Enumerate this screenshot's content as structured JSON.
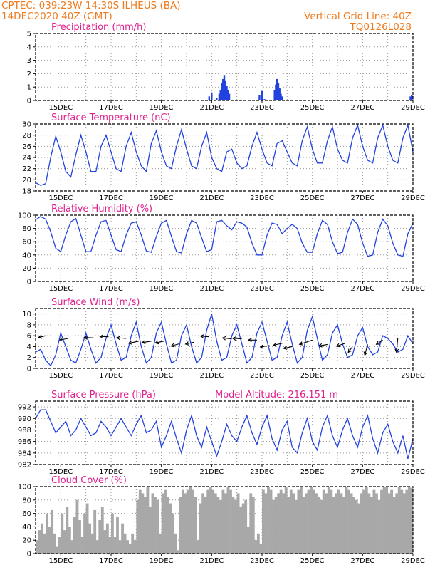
{
  "header": {
    "line1": "CPTEC:   039:23W-14:30S  ILHEUS (BA)",
    "line2": "14DEC2020 40Z (GMT)",
    "right1": "Vertical Grid Line: 40Z",
    "right2": "TQ0126L028"
  },
  "chart_data": [
    {
      "type": "bar",
      "title": "Precipitation (mm/h)",
      "ylim": [
        0,
        5
      ],
      "yticks": [
        "0",
        "1",
        "2",
        "3",
        "4",
        "5"
      ],
      "xticks": [
        "15DEC",
        "17DEC",
        "19DEC",
        "21DEC",
        "23DEC",
        "25DEC",
        "27DEC",
        "29DEC"
      ],
      "xlim": [
        14.0,
        29.0
      ],
      "color": "#2242e0",
      "points": [
        [
          20.9,
          0.3
        ],
        [
          21.0,
          0.6
        ],
        [
          21.2,
          0.2
        ],
        [
          21.3,
          0.5
        ],
        [
          21.35,
          0.8
        ],
        [
          21.4,
          1.3
        ],
        [
          21.45,
          1.6
        ],
        [
          21.5,
          1.9
        ],
        [
          21.55,
          1.5
        ],
        [
          21.6,
          1.1
        ],
        [
          21.65,
          0.8
        ],
        [
          21.7,
          0.5
        ],
        [
          22.9,
          0.4
        ],
        [
          23.0,
          0.7
        ],
        [
          23.1,
          0.1
        ],
        [
          23.5,
          0.8
        ],
        [
          23.55,
          1.2
        ],
        [
          23.6,
          1.6
        ],
        [
          23.65,
          1.3
        ],
        [
          23.7,
          0.9
        ],
        [
          23.75,
          0.5
        ],
        [
          23.8,
          0.3
        ],
        [
          28.9,
          0.3
        ],
        [
          28.95,
          0.4
        ]
      ]
    },
    {
      "type": "line",
      "title": "Surface Temperature (nC)",
      "ylim": [
        18,
        30
      ],
      "yticks": [
        "18",
        "20",
        "22",
        "24",
        "26",
        "28",
        "30"
      ],
      "xticks": [
        "15DEC",
        "17DEC",
        "19DEC",
        "21DEC",
        "23DEC",
        "25DEC",
        "27DEC",
        "29DEC"
      ],
      "xlim": [
        14.0,
        29.0
      ],
      "color": "#2242e0",
      "x": [
        14.0,
        14.2,
        14.4,
        14.6,
        14.8,
        15.0,
        15.2,
        15.4,
        15.6,
        15.8,
        16.0,
        16.2,
        16.4,
        16.6,
        16.8,
        17.0,
        17.2,
        17.4,
        17.6,
        17.8,
        18.0,
        18.2,
        18.4,
        18.6,
        18.8,
        19.0,
        19.2,
        19.4,
        19.6,
        19.8,
        20.0,
        20.2,
        20.4,
        20.6,
        20.8,
        21.0,
        21.2,
        21.4,
        21.6,
        21.8,
        22.0,
        22.2,
        22.4,
        22.6,
        22.8,
        23.0,
        23.2,
        23.4,
        23.6,
        23.8,
        24.0,
        24.2,
        24.4,
        24.6,
        24.8,
        25.0,
        25.2,
        25.4,
        25.6,
        25.8,
        26.0,
        26.2,
        26.4,
        26.6,
        26.8,
        27.0,
        27.2,
        27.4,
        27.6,
        27.8,
        28.0,
        28.2,
        28.4,
        28.6,
        28.8,
        29.0
      ],
      "y": [
        19.5,
        19.0,
        19.3,
        24.0,
        27.8,
        25.0,
        21.5,
        20.5,
        24.5,
        28.0,
        25.0,
        21.5,
        21.5,
        26.0,
        28.0,
        25.0,
        22.0,
        21.5,
        26.0,
        28.5,
        25.0,
        22.5,
        21.5,
        26.5,
        28.8,
        25.0,
        22.5,
        22.0,
        26.0,
        29.0,
        25.5,
        22.5,
        22.0,
        26.0,
        28.5,
        24.0,
        22.0,
        21.5,
        25.0,
        25.5,
        23.0,
        22.0,
        22.5,
        26.0,
        28.5,
        25.5,
        23.0,
        22.5,
        26.5,
        27.0,
        25.0,
        23.0,
        22.5,
        27.0,
        29.5,
        25.5,
        23.0,
        23.0,
        27.0,
        29.5,
        25.5,
        23.5,
        23.0,
        27.5,
        29.8,
        26.0,
        23.5,
        23.0,
        27.5,
        29.8,
        26.0,
        23.5,
        23.0,
        27.5,
        29.8,
        25.0
      ]
    },
    {
      "type": "line",
      "title": "Relative Humidity (%)",
      "ylim": [
        0,
        100
      ],
      "yticks": [
        "0",
        "20",
        "40",
        "60",
        "80",
        "100"
      ],
      "xticks": [
        "15DEC",
        "17DEC",
        "19DEC",
        "21DEC",
        "23DEC",
        "25DEC",
        "27DEC",
        "29DEC"
      ],
      "xlim": [
        14.0,
        29.0
      ],
      "color": "#2242e0",
      "x": [
        14.0,
        14.2,
        14.4,
        14.6,
        14.8,
        15.0,
        15.2,
        15.4,
        15.6,
        15.8,
        16.0,
        16.2,
        16.4,
        16.6,
        16.8,
        17.0,
        17.2,
        17.4,
        17.6,
        17.8,
        18.0,
        18.2,
        18.4,
        18.6,
        18.8,
        19.0,
        19.2,
        19.4,
        19.6,
        19.8,
        20.0,
        20.2,
        20.4,
        20.6,
        20.8,
        21.0,
        21.2,
        21.4,
        21.6,
        21.8,
        22.0,
        22.2,
        22.4,
        22.6,
        22.8,
        23.0,
        23.2,
        23.4,
        23.6,
        23.8,
        24.0,
        24.2,
        24.4,
        24.6,
        24.8,
        25.0,
        25.2,
        25.4,
        25.6,
        25.8,
        26.0,
        26.2,
        26.4,
        26.6,
        26.8,
        27.0,
        27.2,
        27.4,
        27.6,
        27.8,
        28.0,
        28.2,
        28.4,
        28.6,
        28.8,
        29.0
      ],
      "y": [
        93,
        98,
        94,
        75,
        50,
        45,
        70,
        90,
        95,
        70,
        45,
        45,
        70,
        90,
        92,
        70,
        48,
        45,
        70,
        88,
        90,
        70,
        46,
        44,
        68,
        88,
        92,
        68,
        45,
        43,
        72,
        92,
        88,
        66,
        45,
        48,
        90,
        92,
        84,
        78,
        90,
        88,
        82,
        58,
        40,
        40,
        70,
        88,
        86,
        72,
        80,
        86,
        80,
        58,
        44,
        44,
        72,
        92,
        86,
        60,
        42,
        44,
        74,
        94,
        86,
        58,
        38,
        40,
        74,
        94,
        84,
        58,
        40,
        38,
        72,
        88
      ]
    },
    {
      "type": "line",
      "title": "Surface Wind (m/s)",
      "ylim": [
        0,
        11
      ],
      "yticks": [
        "0",
        "2",
        "4",
        "6",
        "8",
        "10"
      ],
      "xticks": [
        "15DEC",
        "17DEC",
        "19DEC",
        "21DEC",
        "23DEC",
        "25DEC",
        "27DEC",
        "29DEC"
      ],
      "xlim": [
        14.0,
        29.0
      ],
      "color": "#2242e0",
      "x": [
        14.0,
        14.2,
        14.4,
        14.6,
        14.8,
        15.0,
        15.2,
        15.4,
        15.6,
        15.8,
        16.0,
        16.2,
        16.4,
        16.6,
        16.8,
        17.0,
        17.2,
        17.4,
        17.6,
        17.8,
        18.0,
        18.2,
        18.4,
        18.6,
        18.8,
        19.0,
        19.2,
        19.4,
        19.6,
        19.8,
        20.0,
        20.2,
        20.4,
        20.6,
        20.8,
        21.0,
        21.2,
        21.4,
        21.6,
        21.8,
        22.0,
        22.2,
        22.4,
        22.6,
        22.8,
        23.0,
        23.2,
        23.4,
        23.6,
        23.8,
        24.0,
        24.2,
        24.4,
        24.6,
        24.8,
        25.0,
        25.2,
        25.4,
        25.6,
        25.8,
        26.0,
        26.2,
        26.4,
        26.6,
        26.8,
        27.0,
        27.2,
        27.4,
        27.6,
        27.8,
        28.0,
        28.2,
        28.4,
        28.6,
        28.8,
        29.0
      ],
      "y": [
        3.0,
        3.5,
        1.5,
        0.5,
        2.5,
        6.5,
        4.0,
        1.5,
        1.0,
        3.5,
        6.5,
        3.5,
        1.0,
        2.0,
        5.5,
        8.0,
        4.5,
        1.5,
        2.0,
        6.0,
        8.5,
        4.0,
        1.0,
        2.0,
        6.5,
        8.5,
        4.5,
        1.0,
        1.5,
        6.0,
        8.0,
        4.0,
        1.0,
        2.0,
        7.0,
        10.0,
        5.0,
        1.5,
        2.0,
        6.0,
        8.0,
        4.5,
        1.0,
        2.0,
        6.5,
        8.5,
        5.0,
        1.5,
        2.0,
        6.0,
        8.5,
        4.5,
        1.0,
        2.0,
        7.0,
        9.5,
        5.5,
        1.5,
        2.5,
        6.5,
        8.0,
        4.5,
        2.0,
        2.5,
        6.0,
        7.5,
        4.0,
        2.5,
        3.0,
        6.0,
        5.5,
        4.5,
        3.0,
        3.5,
        6.0,
        4.5
      ],
      "arrows": [
        [
          14.4,
          6.0,
          -1.0,
          -0.25
        ],
        [
          15.3,
          5.5,
          -1.2,
          -0.2
        ],
        [
          16.3,
          5.6,
          -1.3,
          0.05
        ],
        [
          16.9,
          5.8,
          -1.2,
          0.05
        ],
        [
          17.6,
          5.5,
          -1.3,
          0.1
        ],
        [
          18.1,
          5.0,
          -1.4,
          -0.3
        ],
        [
          18.6,
          5.0,
          -1.3,
          -0.2
        ],
        [
          19.1,
          5.0,
          -1.2,
          -0.25
        ],
        [
          19.7,
          4.5,
          -1.1,
          -0.3
        ],
        [
          20.3,
          4.8,
          -1.2,
          -0.25
        ],
        [
          20.9,
          5.8,
          -1.2,
          0.1
        ],
        [
          21.8,
          5.4,
          -1.3,
          0.15
        ],
        [
          22.2,
          5.4,
          -1.3,
          0.1
        ],
        [
          22.8,
          5.2,
          -1.2,
          0.0
        ],
        [
          23.3,
          4.2,
          -1.3,
          -0.2
        ],
        [
          23.8,
          4.6,
          -1.2,
          -0.25
        ],
        [
          24.2,
          4.0,
          -1.2,
          -0.25
        ],
        [
          25.0,
          5.2,
          -1.8,
          -0.6
        ],
        [
          25.6,
          4.4,
          -1.2,
          -0.2
        ],
        [
          26.3,
          4.6,
          -1.2,
          -0.4
        ],
        [
          26.6,
          4.0,
          -0.6,
          -0.8
        ],
        [
          27.2,
          4.4,
          -0.4,
          -1.5
        ],
        [
          27.8,
          5.2,
          -0.9,
          -0.6
        ],
        [
          28.4,
          5.6,
          -0.2,
          -2.0
        ]
      ]
    },
    {
      "type": "line",
      "title": "Surface Pressure (hPa)",
      "subtitle": "Model Altitude: 216.151 m",
      "ylim": [
        982,
        993
      ],
      "yticks": [
        "982",
        "984",
        "986",
        "988",
        "990",
        "992"
      ],
      "xticks": [
        "15DEC",
        "17DEC",
        "19DEC",
        "21DEC",
        "23DEC",
        "25DEC",
        "27DEC",
        "29DEC"
      ],
      "xlim": [
        14.0,
        29.0
      ],
      "color": "#2242e0",
      "x": [
        14.0,
        14.2,
        14.4,
        14.6,
        14.8,
        15.0,
        15.2,
        15.4,
        15.6,
        15.8,
        16.0,
        16.2,
        16.4,
        16.6,
        16.8,
        17.0,
        17.2,
        17.4,
        17.6,
        17.8,
        18.0,
        18.2,
        18.4,
        18.6,
        18.8,
        19.0,
        19.2,
        19.4,
        19.6,
        19.8,
        20.0,
        20.2,
        20.4,
        20.6,
        20.8,
        21.0,
        21.2,
        21.4,
        21.6,
        21.8,
        22.0,
        22.2,
        22.4,
        22.6,
        22.8,
        23.0,
        23.2,
        23.4,
        23.6,
        23.8,
        24.0,
        24.2,
        24.4,
        24.6,
        24.8,
        25.0,
        25.2,
        25.4,
        25.6,
        25.8,
        26.0,
        26.2,
        26.4,
        26.6,
        26.8,
        27.0,
        27.2,
        27.4,
        27.6,
        27.8,
        28.0,
        28.2,
        28.4,
        28.6,
        28.8,
        29.0
      ],
      "y": [
        990.0,
        991.5,
        991.5,
        989.5,
        987.5,
        988.5,
        989.5,
        987.0,
        988.0,
        990.0,
        988.5,
        987.0,
        987.5,
        989.5,
        988.5,
        987.0,
        988.5,
        990.0,
        988.5,
        987.0,
        989.0,
        990.5,
        987.5,
        988.0,
        989.5,
        985.0,
        987.0,
        989.5,
        986.5,
        984.0,
        988.0,
        990.5,
        987.0,
        985.0,
        988.5,
        986.0,
        983.5,
        986.0,
        989.0,
        987.0,
        986.0,
        988.5,
        990.5,
        987.5,
        985.5,
        988.5,
        990.5,
        986.5,
        984.5,
        988.0,
        989.5,
        985.0,
        984.0,
        987.5,
        990.0,
        986.0,
        984.5,
        988.5,
        990.5,
        987.0,
        985.0,
        988.0,
        990.0,
        987.0,
        985.0,
        988.5,
        990.5,
        986.5,
        984.0,
        987.5,
        989.0,
        986.0,
        984.0,
        987.0,
        983.0,
        986.5
      ]
    },
    {
      "type": "bar",
      "title": "Cloud Cover (%)",
      "ylim": [
        0,
        100
      ],
      "yticks": [
        "0",
        "20",
        "40",
        "60",
        "80",
        "100"
      ],
      "xticks": [
        "15DEC",
        "17DEC",
        "19DEC",
        "21DEC",
        "23DEC",
        "25DEC",
        "27DEC",
        "29DEC"
      ],
      "xlim": [
        14.0,
        29.0
      ],
      "color": "#a8a8a8",
      "x": [
        14.0,
        14.1,
        14.2,
        14.3,
        14.4,
        14.5,
        14.6,
        14.7,
        14.8,
        14.9,
        15.0,
        15.1,
        15.2,
        15.3,
        15.4,
        15.5,
        15.6,
        15.7,
        15.8,
        15.9,
        16.0,
        16.1,
        16.2,
        16.3,
        16.4,
        16.5,
        16.6,
        16.7,
        16.8,
        16.9,
        17.0,
        17.1,
        17.2,
        17.3,
        17.4,
        17.5,
        17.6,
        17.7,
        17.8,
        17.9,
        18.0,
        18.1,
        18.2,
        18.3,
        18.4,
        18.5,
        18.6,
        18.7,
        18.8,
        18.9,
        19.0,
        19.1,
        19.2,
        19.3,
        19.4,
        19.5,
        19.6,
        19.7,
        19.8,
        19.9,
        20.0,
        20.1,
        20.2,
        20.3,
        20.4,
        20.5,
        20.6,
        20.7,
        20.8,
        20.9,
        21.0,
        21.1,
        21.2,
        21.3,
        21.4,
        21.5,
        21.6,
        21.7,
        21.8,
        21.9,
        22.0,
        22.1,
        22.2,
        22.3,
        22.4,
        22.5,
        22.6,
        22.7,
        22.8,
        22.9,
        23.0,
        23.1,
        23.2,
        23.3,
        23.4,
        23.5,
        23.6,
        23.7,
        23.8,
        23.9,
        24.0,
        24.1,
        24.2,
        24.3,
        24.4,
        24.5,
        24.6,
        24.7,
        24.8,
        24.9,
        25.0,
        25.1,
        25.2,
        25.3,
        25.4,
        25.5,
        25.6,
        25.7,
        25.8,
        25.9,
        26.0,
        26.1,
        26.2,
        26.3,
        26.4,
        26.5,
        26.6,
        26.7,
        26.8,
        26.9,
        27.0,
        27.1,
        27.2,
        27.3,
        27.4,
        27.5,
        27.6,
        27.7,
        27.8,
        27.9,
        28.0,
        28.1,
        28.2,
        28.3,
        28.4,
        28.5,
        28.6,
        28.7,
        28.8,
        28.9
      ],
      "y": [
        20,
        35,
        45,
        30,
        60,
        40,
        65,
        30,
        10,
        25,
        60,
        35,
        70,
        40,
        20,
        55,
        80,
        50,
        25,
        60,
        75,
        45,
        30,
        65,
        20,
        50,
        70,
        35,
        45,
        25,
        60,
        25,
        55,
        20,
        45,
        30,
        20,
        15,
        30,
        20,
        80,
        95,
        90,
        85,
        100,
        70,
        90,
        85,
        80,
        30,
        90,
        95,
        85,
        75,
        60,
        30,
        5,
        85,
        95,
        90,
        95,
        100,
        95,
        85,
        20,
        75,
        90,
        85,
        95,
        100,
        95,
        90,
        85,
        80,
        95,
        90,
        100,
        95,
        85,
        80,
        90,
        70,
        75,
        80,
        40,
        90,
        85,
        20,
        30,
        15,
        95,
        90,
        100,
        95,
        80,
        85,
        90,
        95,
        90,
        100,
        85,
        95,
        90,
        80,
        95,
        100,
        85,
        90,
        95,
        100,
        95,
        90,
        85,
        80,
        95,
        90,
        100,
        95,
        85,
        90,
        95,
        90,
        85,
        100,
        95,
        90,
        85,
        80,
        75,
        90,
        95,
        100,
        90,
        85,
        95,
        90,
        80,
        95,
        100,
        100,
        90,
        95,
        85,
        90,
        100,
        95,
        90,
        95,
        100,
        98
      ]
    }
  ]
}
